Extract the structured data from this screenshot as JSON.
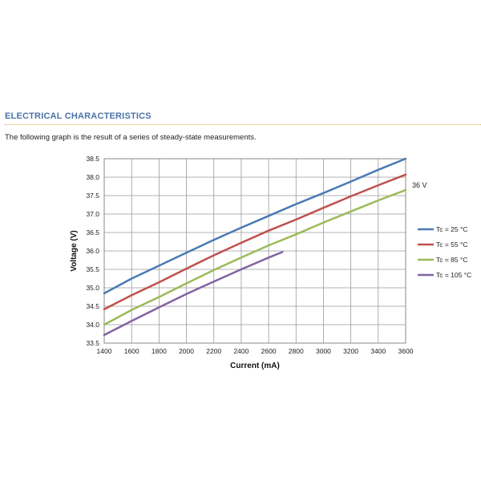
{
  "section": {
    "title": "ELECTRICAL CHARACTERISTICS",
    "intro": "The following graph is the result of a series of steady-state measurements."
  },
  "chart_data": {
    "type": "line",
    "xlabel": "Current (mA)",
    "ylabel": "Voltage (V)",
    "xlim": [
      1400,
      3600
    ],
    "ylim": [
      33.5,
      38.5
    ],
    "xticks": [
      "1400",
      "1600",
      "1800",
      "2000",
      "2200",
      "2400",
      "2600",
      "2800",
      "3000",
      "3200",
      "3400",
      "3600"
    ],
    "yticks": [
      "33.5",
      "34.0",
      "34.5",
      "35.0",
      "35.5",
      "36.0",
      "36.5",
      "37.0",
      "37.5",
      "38.0",
      "38.5"
    ],
    "grid": true,
    "legend_position": "right",
    "annotation": "36 V",
    "series": [
      {
        "name": "Tc = 25 °C",
        "color": "#4a7ab5",
        "x": [
          1400,
          1600,
          1800,
          2000,
          2200,
          2400,
          2600,
          2800,
          3000,
          3200,
          3400,
          3600
        ],
        "y": [
          34.85,
          35.25,
          35.6,
          35.95,
          36.3,
          36.63,
          36.95,
          37.27,
          37.57,
          37.88,
          38.2,
          38.5
        ]
      },
      {
        "name": "Tc = 55 °C",
        "color": "#c0504d",
        "x": [
          1400,
          1600,
          1800,
          2000,
          2200,
          2400,
          2600,
          2800,
          3000,
          3200,
          3400,
          3600
        ],
        "y": [
          34.42,
          34.8,
          35.15,
          35.52,
          35.88,
          36.22,
          36.55,
          36.85,
          37.17,
          37.48,
          37.78,
          38.07
        ]
      },
      {
        "name": "Tc = 85 °C",
        "color": "#9bbb59",
        "x": [
          1400,
          1600,
          1800,
          2000,
          2200,
          2400,
          2600,
          2800,
          3000,
          3200,
          3400,
          3600
        ],
        "y": [
          34.0,
          34.4,
          34.75,
          35.12,
          35.48,
          35.82,
          36.15,
          36.45,
          36.77,
          37.07,
          37.37,
          37.65
        ]
      },
      {
        "name": "Tc = 105 °C",
        "color": "#8064a2",
        "x": [
          1400,
          1600,
          1800,
          2000,
          2200,
          2400,
          2600,
          2700
        ],
        "y": [
          33.72,
          34.1,
          34.47,
          34.83,
          35.17,
          35.5,
          35.82,
          35.97
        ]
      }
    ]
  }
}
